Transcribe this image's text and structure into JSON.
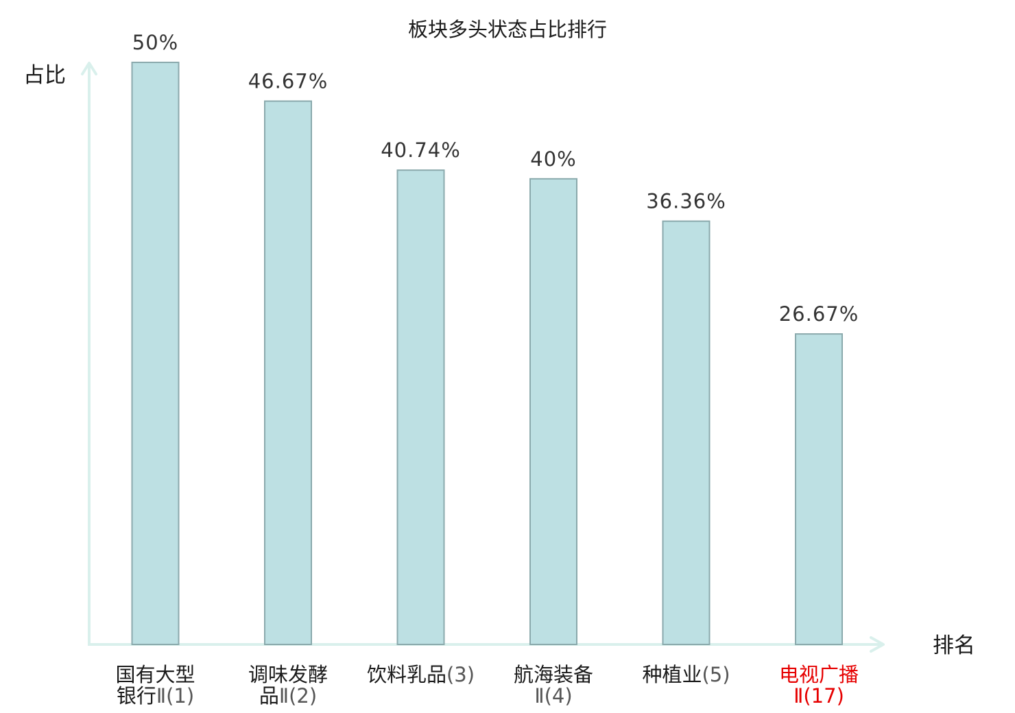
{
  "chart_data": {
    "type": "bar",
    "title": "板块多头状态占比排行",
    "xlabel": "排名",
    "ylabel": "占比",
    "ylim": [
      0,
      50
    ],
    "grid": false,
    "categories": [
      {
        "line1": "国有大型",
        "line2_name": "银行",
        "line2_rank": "Ⅱ(1)",
        "highlight": false
      },
      {
        "line1": "调味发酵",
        "line2_name": "品",
        "line2_rank": "Ⅱ(2)",
        "highlight": false
      },
      {
        "line1": "饮料乳品",
        "line1_rank": "(3)",
        "line2_name": "",
        "line2_rank": "",
        "highlight": false
      },
      {
        "line1": "航海装备",
        "line2_name": "",
        "line2_rank": "Ⅱ(4)",
        "highlight": false
      },
      {
        "line1": "种植业",
        "line1_rank": "(5)",
        "line2_name": "",
        "line2_rank": "",
        "highlight": false
      },
      {
        "line1": "电视广播",
        "line2_name": "",
        "line2_rank": "Ⅱ(17)",
        "highlight": true
      }
    ],
    "values": [
      50,
      46.67,
      40.74,
      40,
      36.36,
      26.67
    ],
    "value_labels": [
      "50%",
      "46.67%",
      "40.74%",
      "40%",
      "36.36%",
      "26.67%"
    ],
    "colors": {
      "bar_fill": "#bde0e3",
      "bar_stroke": "#8aa9ac",
      "axis": "#d9f0ec",
      "highlight": "#e60000"
    }
  }
}
